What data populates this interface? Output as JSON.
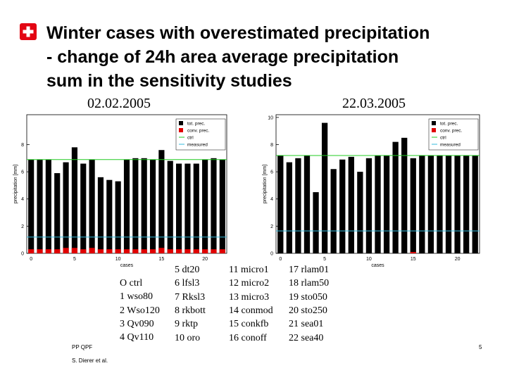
{
  "title": [
    "Winter cases with overestimated precipitation",
    "- change of 24h area average precipitation",
    "sum in the sensitivity studies"
  ],
  "dates": [
    "02.02.2005",
    "22.03.2005"
  ],
  "cases": [
    [
      "O ctrl",
      "1 wso80",
      "2 Wso120",
      "3 Qv090",
      "4 Qv110"
    ],
    [
      "5 dt20",
      "6 lfsl3",
      "7 Rksl3",
      "8 rkbott",
      "9 rktp",
      "10 oro"
    ],
    [
      "11 micro1",
      "12 micro2",
      "13 micro3",
      "14 conmod",
      "15 conkfb",
      "16 conoff"
    ],
    [
      "17 rlam01",
      "18 rlam50",
      "19 sto050",
      "20 sto250",
      "21 sea01",
      "22 sea40"
    ]
  ],
  "footer": {
    "left_top": "PP QPF",
    "left_bottom": "S. Dierer et al.",
    "page": "5"
  },
  "chart_data": [
    {
      "type": "bar",
      "xlabel": "cases",
      "ylabel": "precipitation [mm]",
      "x": [
        0,
        1,
        2,
        3,
        4,
        5,
        6,
        7,
        8,
        9,
        10,
        11,
        12,
        13,
        14,
        15,
        16,
        17,
        18,
        19,
        20,
        21,
        22
      ],
      "series": [
        {
          "name": "tot. prec.",
          "color": "#000000",
          "values": [
            6.9,
            6.9,
            6.9,
            5.9,
            6.7,
            7.8,
            6.6,
            6.9,
            5.6,
            5.4,
            5.3,
            6.9,
            7.0,
            7.0,
            6.9,
            7.6,
            6.8,
            6.6,
            6.6,
            6.6,
            6.9,
            7.0,
            6.9
          ]
        },
        {
          "name": "conv. prec.",
          "color": "#e00000",
          "values": [
            0.3,
            0.3,
            0.3,
            0.3,
            0.4,
            0.4,
            0.3,
            0.4,
            0.3,
            0.3,
            0.3,
            0.3,
            0.3,
            0.3,
            0.3,
            0.4,
            0.3,
            0.3,
            0.3,
            0.3,
            0.3,
            0.3,
            0.3
          ]
        }
      ],
      "lines": [
        {
          "name": "ctrl",
          "color": "#22cc22",
          "value": 6.9
        },
        {
          "name": "measured",
          "color": "#33bbdd",
          "value": 1.2
        }
      ],
      "xlim": [
        -0.5,
        22.5
      ],
      "xticks": [
        0,
        5,
        10,
        15,
        20
      ],
      "ylim": [
        0,
        10.2
      ],
      "yticks": [
        0,
        2,
        4,
        6,
        8
      ]
    },
    {
      "type": "bar",
      "xlabel": "cases",
      "ylabel": "precipitation [mm]",
      "x": [
        0,
        1,
        2,
        3,
        4,
        5,
        6,
        7,
        8,
        9,
        10,
        11,
        12,
        13,
        14,
        15,
        16,
        17,
        18,
        19,
        20,
        21,
        22
      ],
      "series": [
        {
          "name": "tot. prec.",
          "color": "#000000",
          "values": [
            7.2,
            6.7,
            7.0,
            7.2,
            4.5,
            9.6,
            6.2,
            6.9,
            7.1,
            6.0,
            7.0,
            7.2,
            7.2,
            8.2,
            8.5,
            7.0,
            7.2,
            7.2,
            7.2,
            7.2,
            7.2,
            7.2,
            7.2
          ]
        },
        {
          "name": "conv. prec.",
          "color": "#e00000",
          "values": [
            0,
            0,
            0,
            0,
            0,
            0,
            0,
            0,
            0,
            0,
            0,
            0,
            0,
            0,
            0,
            0.1,
            0,
            0,
            0,
            0,
            0,
            0,
            0
          ]
        }
      ],
      "lines": [
        {
          "name": "ctrl",
          "color": "#22cc22",
          "value": 7.2
        },
        {
          "name": "measured",
          "color": "#33bbdd",
          "value": 1.65
        }
      ],
      "xlim": [
        -0.5,
        22.5
      ],
      "xticks": [
        0,
        5,
        10,
        15,
        20
      ],
      "ylim": [
        0,
        10.2
      ],
      "yticks": [
        0,
        2,
        4,
        6,
        8,
        10
      ]
    }
  ]
}
